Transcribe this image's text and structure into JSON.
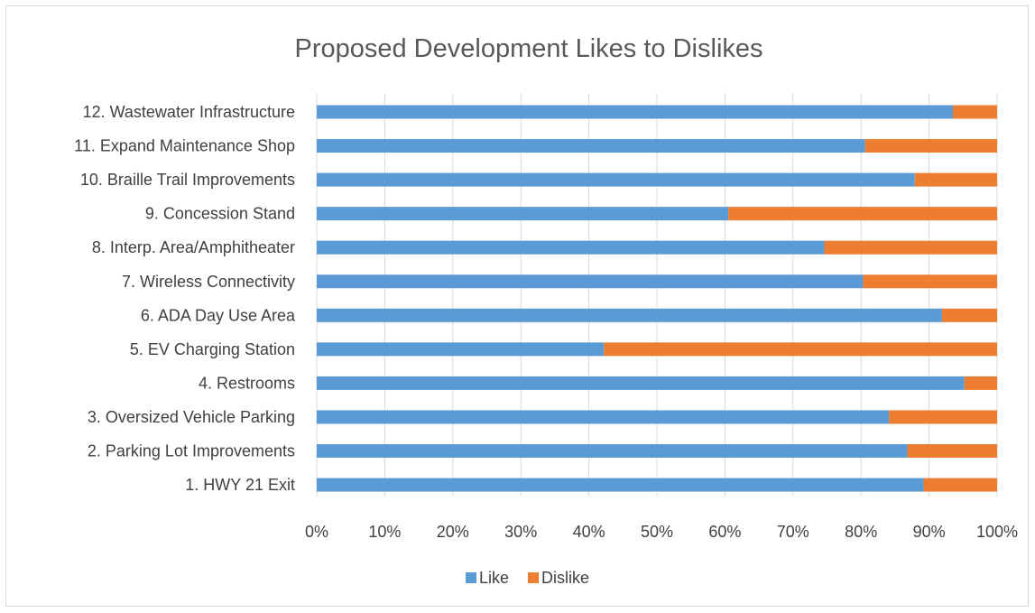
{
  "chart_data": {
    "type": "bar",
    "orientation": "horizontal",
    "stacked": "percent",
    "title": "Proposed Development Likes to Dislikes",
    "xlabel": "",
    "ylabel": "",
    "xlim": [
      0,
      100
    ],
    "x_ticks": [
      "0%",
      "10%",
      "20%",
      "30%",
      "40%",
      "50%",
      "60%",
      "70%",
      "80%",
      "90%",
      "100%"
    ],
    "grid": "vertical",
    "legend_position": "bottom",
    "categories": [
      "12.  Wastewater Infrastructure",
      "11.  Expand Maintenance Shop",
      "10.  Braille Trail Improvements",
      "9.  Concession Stand",
      "8.  Interp. Area/Amphitheater",
      "7.  Wireless Connectivity",
      "6.  ADA Day Use Area",
      "5.  EV Charging Station",
      "4.  Restrooms",
      "3.  Oversized Vehicle Parking",
      "2.  Parking Lot Improvements",
      "1.  HWY 21 Exit"
    ],
    "series": [
      {
        "name": "Like",
        "color": "#5b9bd5",
        "values": [
          93.5,
          80.6,
          87.9,
          60.5,
          74.6,
          80.3,
          91.9,
          42.2,
          95.2,
          84.1,
          86.8,
          89.2
        ]
      },
      {
        "name": "Dislike",
        "color": "#ed7d31",
        "values": [
          6.5,
          19.4,
          12.1,
          39.5,
          25.4,
          19.7,
          8.1,
          57.8,
          4.8,
          15.9,
          13.2,
          10.8
        ]
      }
    ]
  }
}
